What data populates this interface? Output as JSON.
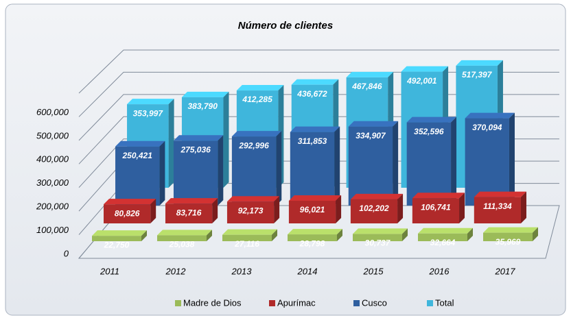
{
  "chart_data": {
    "type": "bar3d",
    "title": "Número de clientes",
    "categories": [
      "2011",
      "2012",
      "2013",
      "2014",
      "2015",
      "2016",
      "2017"
    ],
    "series": [
      {
        "name": "Madre de Dios",
        "color": "#9bbb59",
        "values": [
          22750,
          25038,
          27116,
          28798,
          30737,
          32664,
          35969
        ],
        "value_labels": [
          "22,750",
          "25,038",
          "27,116",
          "28,798",
          "30,737",
          "32,664",
          "35,969"
        ]
      },
      {
        "name": "Apurímac",
        "color": "#b02a2a",
        "values": [
          80826,
          83716,
          92173,
          96021,
          102202,
          106741,
          111334
        ],
        "value_labels": [
          "80,826",
          "83,716",
          "92,173",
          "96,021",
          "102,202",
          "106,741",
          "111,334"
        ]
      },
      {
        "name": "Cusco",
        "color": "#2f5f9f",
        "values": [
          250421,
          275036,
          292996,
          311853,
          334907,
          352596,
          370094
        ],
        "value_labels": [
          "250,421",
          "275,036",
          "292,996",
          "311,853",
          "334,907",
          "352,596",
          "370,094"
        ]
      },
      {
        "name": "Total",
        "color": "#3fb6dc",
        "values": [
          353997,
          383790,
          412285,
          436672,
          467846,
          492001,
          517397
        ],
        "value_labels": [
          "353,997",
          "383,790",
          "412,285",
          "436,672",
          "467,846",
          "492,001",
          "517,397"
        ]
      }
    ],
    "ylim": [
      0,
      700000
    ],
    "yticks": [
      0,
      {
        "value": 100000,
        "label": "100,000"
      },
      {
        "value": 200000,
        "label": "200,000"
      },
      {
        "value": 300000,
        "label": "300,000"
      },
      {
        "value": 400000,
        "label": "400,000"
      },
      {
        "value": 500000,
        "label": "500,000"
      },
      {
        "value": 600000,
        "label": "600,000"
      }
    ],
    "grid": true,
    "legend": "bottom"
  }
}
